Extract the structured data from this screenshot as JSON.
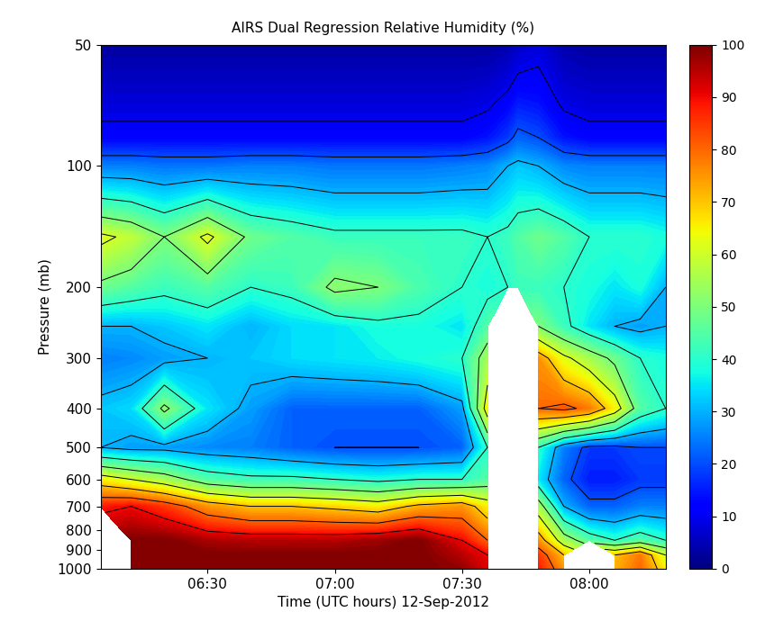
{
  "chart_data": {
    "type": "heatmap",
    "title": "AIRS Dual Regression Relative Humidity (%)",
    "x_label": "Time (UTC hours) 12-Sep-2012",
    "y_label": "Pressure (mb)",
    "log": "y",
    "x": [
      6.08,
      6.2,
      6.33,
      6.5,
      6.67,
      6.83,
      7.0,
      7.17,
      7.33,
      7.5,
      7.6,
      7.68,
      7.72,
      7.8,
      7.9,
      8.0,
      8.1,
      8.2,
      8.3
    ],
    "y": [
      50,
      70,
      85,
      100,
      150,
      200,
      250,
      300,
      400,
      500,
      600,
      700,
      850,
      925,
      1000
    ],
    "cells": [
      [
        3,
        3,
        3,
        3,
        3,
        3,
        3,
        3,
        3,
        3,
        3,
        4,
        6,
        8,
        4,
        3,
        3,
        3,
        3
      ],
      [
        8,
        8,
        8,
        8,
        8,
        8,
        8,
        8,
        8,
        8,
        9,
        12,
        15,
        14,
        9,
        8,
        8,
        8,
        8
      ],
      [
        12,
        12,
        12,
        12,
        12,
        12,
        12,
        12,
        12,
        12,
        14,
        18,
        22,
        20,
        14,
        12,
        12,
        12,
        12
      ],
      [
        25,
        25,
        24,
        24,
        25,
        25,
        24,
        24,
        24,
        25,
        26,
        30,
        32,
        30,
        26,
        25,
        25,
        25,
        25
      ],
      [
        62,
        58,
        50,
        62,
        48,
        45,
        42,
        42,
        42,
        42,
        40,
        42,
        45,
        48,
        45,
        40,
        40,
        40,
        38
      ],
      [
        48,
        45,
        42,
        45,
        40,
        42,
        52,
        50,
        44,
        40,
        38,
        40,
        42,
        42,
        40,
        38,
        35,
        38,
        30
      ],
      [
        30,
        30,
        32,
        35,
        30,
        34,
        35,
        38,
        38,
        35,
        45,
        null,
        null,
        50,
        42,
        35,
        30,
        28,
        30
      ],
      [
        25,
        26,
        28,
        30,
        32,
        34,
        35,
        36,
        38,
        40,
        55,
        null,
        null,
        75,
        62,
        55,
        48,
        40,
        38
      ],
      [
        32,
        34,
        52,
        35,
        28,
        22,
        22,
        22,
        22,
        28,
        65,
        null,
        null,
        80,
        82,
        78,
        65,
        45,
        40
      ],
      [
        30,
        28,
        28,
        26,
        25,
        22,
        20,
        20,
        20,
        22,
        40,
        null,
        null,
        40,
        25,
        18,
        18,
        20,
        20
      ],
      [
        65,
        60,
        55,
        45,
        42,
        42,
        40,
        38,
        40,
        40,
        45,
        null,
        null,
        35,
        22,
        15,
        15,
        18,
        18
      ],
      [
        88,
        90,
        85,
        75,
        70,
        70,
        68,
        65,
        72,
        75,
        65,
        null,
        null,
        55,
        30,
        22,
        22,
        25,
        25
      ],
      [
        null,
        100,
        100,
        96,
        95,
        95,
        95,
        97,
        100,
        90,
        80,
        null,
        null,
        75,
        55,
        45,
        40,
        45,
        40
      ],
      [
        null,
        100,
        100,
        100,
        100,
        100,
        100,
        100,
        100,
        95,
        90,
        null,
        null,
        85,
        70,
        null,
        70,
        78,
        60
      ],
      [
        null,
        100,
        100,
        100,
        100,
        100,
        100,
        100,
        100,
        98,
        92,
        null,
        null,
        88,
        75,
        null,
        72,
        80,
        65
      ]
    ],
    "xlim": [
      6.08,
      8.3
    ],
    "xticks": [
      {
        "value": 6.5,
        "label": "06:30"
      },
      {
        "value": 7.0,
        "label": "07:00"
      },
      {
        "value": 7.5,
        "label": "07:30"
      },
      {
        "value": 8.0,
        "label": "08:00"
      }
    ],
    "ylim": [
      1000,
      50
    ],
    "yticks": [
      50,
      100,
      200,
      300,
      400,
      500,
      600,
      700,
      800,
      900,
      1000
    ],
    "colorbar_range": [
      0,
      100
    ],
    "colorbar_ticks": [
      0,
      10,
      20,
      30,
      40,
      50,
      60,
      70,
      80,
      90,
      100
    ]
  }
}
